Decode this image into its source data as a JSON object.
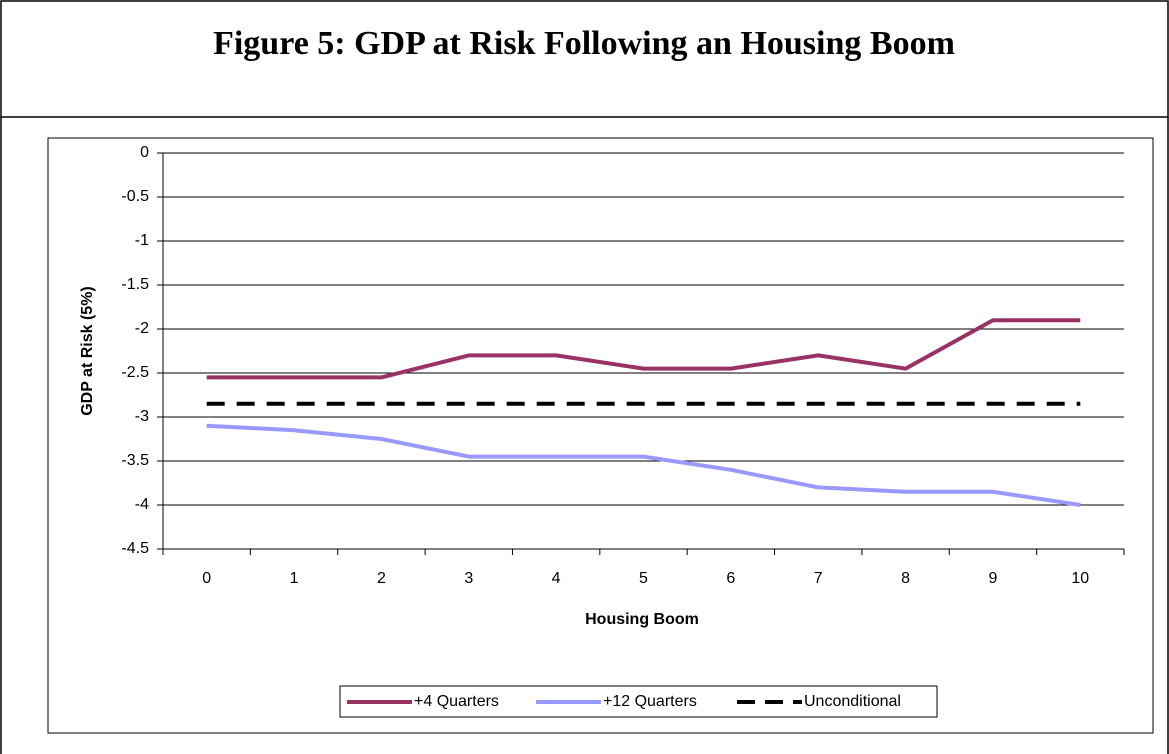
{
  "chart_data": {
    "type": "line",
    "title": "Figure 5:  GDP at Risk Following an Housing Boom",
    "x_label": "Housing Boom",
    "y_label": "GDP at Risk (5%)",
    "categories": [
      "0",
      "1",
      "2",
      "3",
      "4",
      "5",
      "6",
      "7",
      "8",
      "9",
      "10"
    ],
    "series": [
      {
        "name": "+4 Quarters",
        "color": "#993366",
        "values": [
          -2.55,
          -2.55,
          -2.55,
          -2.3,
          -2.3,
          -2.45,
          -2.45,
          -2.3,
          -2.45,
          -1.9,
          -1.9
        ]
      },
      {
        "name": "+12 Quarters",
        "color": "#9999ff",
        "values": [
          -3.1,
          -3.15,
          -3.25,
          -3.45,
          -3.45,
          -3.45,
          -3.6,
          -3.8,
          -3.85,
          -3.85,
          -4.0
        ]
      },
      {
        "name": "Unconditional",
        "color": "#000000",
        "dashed": true,
        "values": [
          -2.85,
          -2.85,
          -2.85,
          -2.85,
          -2.85,
          -2.85,
          -2.85,
          -2.85,
          -2.85,
          -2.85,
          -2.85
        ]
      }
    ],
    "ylim": [
      -4.5,
      0
    ],
    "yticks": [
      0,
      -0.5,
      -1,
      -1.5,
      -2,
      -2.5,
      -3,
      -3.5,
      -4,
      -4.5
    ],
    "grid": true,
    "legend": "bottom"
  }
}
